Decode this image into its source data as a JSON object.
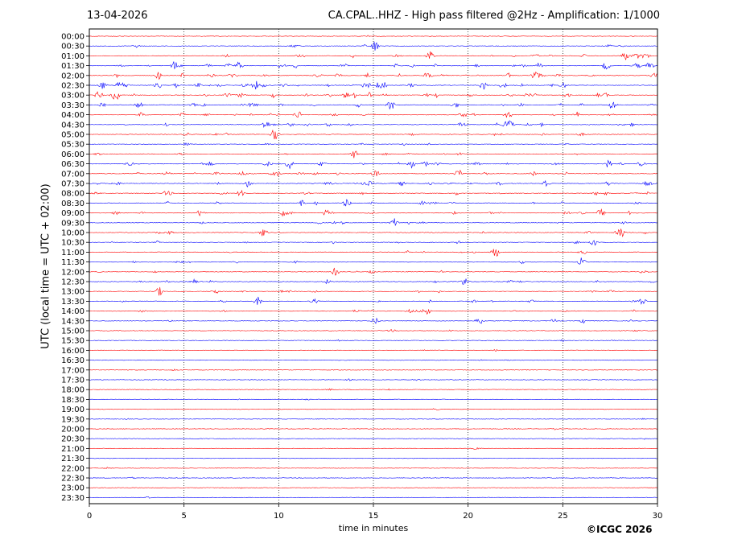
{
  "header": {
    "date": "13-04-2026",
    "title": "CA.CPAL..HHZ - High pass filtered @2Hz - Amplification: 1/1000"
  },
  "footer": {
    "copyright": "©ICGC 2026"
  },
  "chart_data": {
    "type": "line",
    "title": "CA.CPAL..HHZ - High pass filtered @2Hz - Amplification: 1/1000",
    "xlabel": "time in minutes",
    "ylabel": "UTC (local time = UTC + 02:00)",
    "xlim": [
      0,
      30
    ],
    "xticks": [
      0,
      5,
      10,
      15,
      20,
      25,
      30
    ],
    "vertical_gridlines": [
      5,
      10,
      15,
      20,
      25
    ],
    "trace_colors": [
      "#ff0000",
      "#0000ff"
    ],
    "row_labels": [
      "00:00",
      "00:30",
      "01:00",
      "01:30",
      "02:00",
      "02:30",
      "03:00",
      "03:30",
      "04:00",
      "04:30",
      "05:00",
      "05:30",
      "06:00",
      "06:30",
      "07:00",
      "07:30",
      "08:00",
      "08:30",
      "09:00",
      "09:30",
      "10:00",
      "10:30",
      "11:00",
      "11:30",
      "12:00",
      "12:30",
      "13:00",
      "13:30",
      "14:00",
      "14:30",
      "15:00",
      "15:30",
      "16:00",
      "16:30",
      "17:00",
      "17:30",
      "18:00",
      "18:30",
      "19:00",
      "19:30",
      "20:00",
      "20:30",
      "21:00",
      "21:30",
      "22:00",
      "22:30",
      "23:00",
      "23:30"
    ],
    "row_colors": [
      "red",
      "blue",
      "red",
      "blue",
      "red",
      "blue",
      "red",
      "blue",
      "red",
      "blue",
      "red",
      "blue",
      "red",
      "blue",
      "red",
      "blue",
      "red",
      "blue",
      "red",
      "blue",
      "red",
      "blue",
      "red",
      "blue",
      "red",
      "blue",
      "red",
      "blue",
      "red",
      "blue",
      "red",
      "blue",
      "red",
      "blue",
      "red",
      "blue",
      "red",
      "blue",
      "red",
      "blue",
      "red",
      "blue",
      "red",
      "blue",
      "red",
      "blue",
      "red",
      "blue"
    ],
    "row_activity": [
      0.05,
      0.2,
      0.55,
      0.75,
      0.7,
      0.85,
      0.85,
      0.7,
      0.65,
      0.6,
      0.35,
      0.2,
      0.3,
      0.6,
      0.55,
      0.6,
      0.45,
      0.45,
      0.5,
      0.3,
      0.3,
      0.25,
      0.3,
      0.25,
      0.25,
      0.45,
      0.35,
      0.4,
      0.35,
      0.25,
      0.12,
      0.12,
      0.08,
      0.06,
      0.05,
      0.06,
      0.06,
      0.06,
      0.05,
      0.06,
      0.04,
      0.04,
      0.04,
      0.03,
      0.03,
      0.03,
      0.02,
      0.02
    ],
    "events": [
      {
        "row": "00:30",
        "t": 15.1
      },
      {
        "row": "01:00",
        "t": 18.0
      },
      {
        "row": "01:00",
        "t": 28.3
      },
      {
        "row": "01:30",
        "t": 7.9
      },
      {
        "row": "01:30",
        "t": 27.3
      },
      {
        "row": "01:30",
        "t": 29.6
      },
      {
        "row": "02:00",
        "t": 17.9
      },
      {
        "row": "02:00",
        "t": 23.5
      },
      {
        "row": "02:30",
        "t": 0.7
      },
      {
        "row": "02:30",
        "t": 1.6
      },
      {
        "row": "02:30",
        "t": 8.8
      },
      {
        "row": "02:30",
        "t": 20.8
      },
      {
        "row": "02:30",
        "t": 15.5
      },
      {
        "row": "03:00",
        "t": 0.5
      },
      {
        "row": "03:00",
        "t": 1.4
      },
      {
        "row": "03:30",
        "t": 15.9
      },
      {
        "row": "04:00",
        "t": 11.0
      },
      {
        "row": "04:00",
        "t": 22.1
      },
      {
        "row": "04:30",
        "t": 9.3
      },
      {
        "row": "04:30",
        "t": 22.2
      },
      {
        "row": "05:00",
        "t": 9.8
      },
      {
        "row": "06:00",
        "t": 14.0
      },
      {
        "row": "06:30",
        "t": 10.6
      },
      {
        "row": "06:30",
        "t": 17.0
      },
      {
        "row": "06:30",
        "t": 27.4
      },
      {
        "row": "07:00",
        "t": 15.1
      },
      {
        "row": "07:00",
        "t": 19.5
      },
      {
        "row": "07:30",
        "t": 8.4
      },
      {
        "row": "07:30",
        "t": 24.1
      },
      {
        "row": "08:00",
        "t": 8.0
      },
      {
        "row": "08:30",
        "t": 13.6
      },
      {
        "row": "09:00",
        "t": 5.9
      },
      {
        "row": "09:00",
        "t": 10.3
      },
      {
        "row": "09:00",
        "t": 27.0
      },
      {
        "row": "09:30",
        "t": 16.1
      },
      {
        "row": "10:00",
        "t": 9.2
      },
      {
        "row": "10:00",
        "t": 28.1
      },
      {
        "row": "10:30",
        "t": 26.6
      },
      {
        "row": "11:00",
        "t": 21.4
      },
      {
        "row": "11:30",
        "t": 26.0
      },
      {
        "row": "12:00",
        "t": 13.0
      },
      {
        "row": "12:30",
        "t": 19.8
      },
      {
        "row": "13:00",
        "t": 3.7
      },
      {
        "row": "13:30",
        "t": 8.9
      },
      {
        "row": "13:30",
        "t": 29.2
      },
      {
        "row": "14:00",
        "t": 17.8
      },
      {
        "row": "14:30",
        "t": 15.1
      },
      {
        "row": "14:30",
        "t": 20.6
      }
    ]
  }
}
